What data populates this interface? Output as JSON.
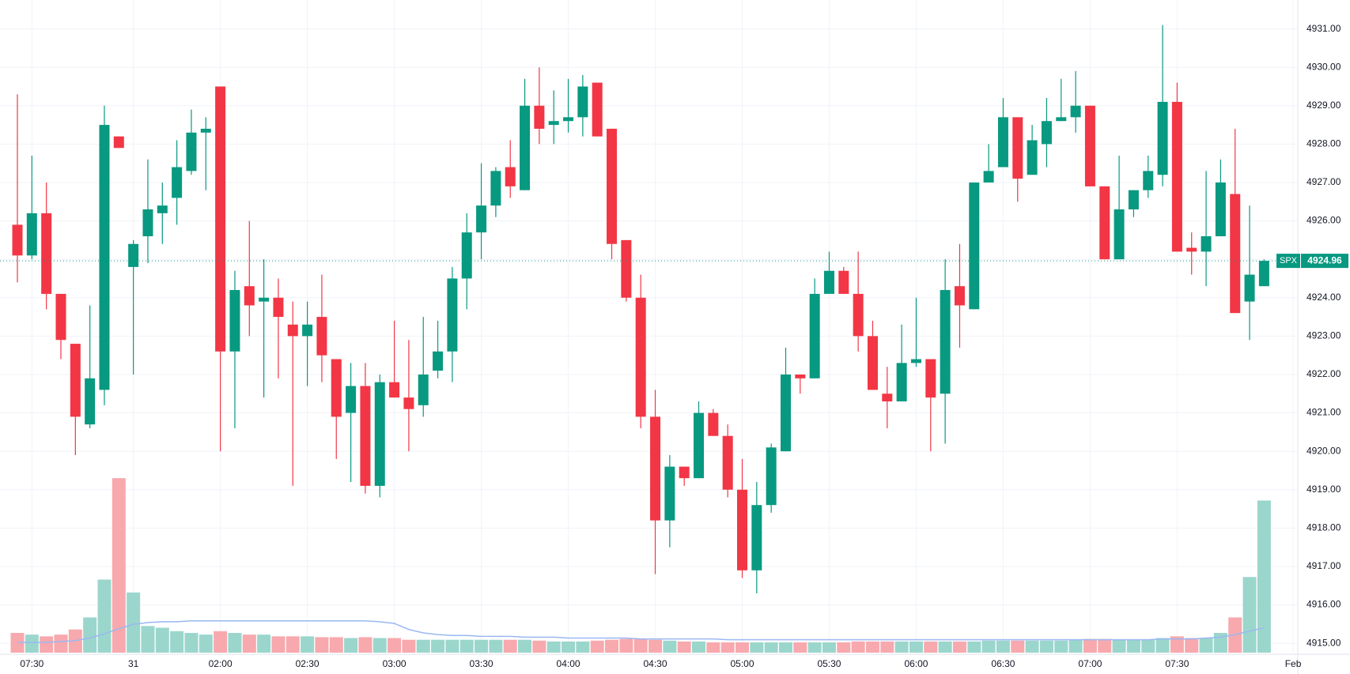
{
  "chart_data": {
    "type": "candlestick",
    "symbol": "SPX",
    "last_price": 4924.96,
    "up_color": "#089981",
    "down_color": "#f23645",
    "volume_up_color": "#9bd6cc",
    "volume_down_color": "#f7a9ae",
    "volume_ma_color": "#9ab8f2",
    "grid": true,
    "ylim": [
      4914.9,
      4931.3
    ],
    "yticks": [
      {
        "value": 4915,
        "label": "4915.00"
      },
      {
        "value": 4916,
        "label": "4916.00"
      },
      {
        "value": 4917,
        "label": "4917.00"
      },
      {
        "value": 4918,
        "label": "4918.00"
      },
      {
        "value": 4919,
        "label": "4919.00"
      },
      {
        "value": 4920,
        "label": "4920.00"
      },
      {
        "value": 4921,
        "label": "4921.00"
      },
      {
        "value": 4922,
        "label": "4922.00"
      },
      {
        "value": 4923,
        "label": "4923.00"
      },
      {
        "value": 4924,
        "label": "4924.00"
      },
      {
        "value": 4925,
        "label": "4925.00"
      },
      {
        "value": 4926,
        "label": "4926.00"
      },
      {
        "value": 4927,
        "label": "4927.00"
      },
      {
        "value": 4928,
        "label": "4928.00"
      },
      {
        "value": 4929,
        "label": "4929.00"
      },
      {
        "value": 4930,
        "label": "4930.00"
      },
      {
        "value": 4931,
        "label": "4931.00"
      }
    ],
    "xticks": [
      {
        "value": 1,
        "label": "07:30"
      },
      {
        "value": 8,
        "label": "31"
      },
      {
        "value": 14,
        "label": "02:00"
      },
      {
        "value": 20,
        "label": "02:30"
      },
      {
        "value": 26,
        "label": "03:00"
      },
      {
        "value": 32,
        "label": "03:30"
      },
      {
        "value": 38,
        "label": "04:00"
      },
      {
        "value": 44,
        "label": "04:30"
      },
      {
        "value": 50,
        "label": "05:00"
      },
      {
        "value": 56,
        "label": "05:30"
      },
      {
        "value": 62,
        "label": "06:00"
      },
      {
        "value": 68,
        "label": "06:30"
      },
      {
        "value": 74,
        "label": "07:00"
      },
      {
        "value": 80,
        "label": "07:30"
      },
      {
        "value": 88,
        "label": "Feb"
      }
    ],
    "open": [
      4925.9,
      4925.1,
      4926.2,
      4924.1,
      4922.8,
      4920.7,
      4921.6,
      4928.2,
      4924.8,
      4925.6,
      4926.2,
      4926.6,
      4927.3,
      4928.3,
      4929.5,
      4922.6,
      4924.3,
      4923.9,
      4924.0,
      4923.3,
      4923.0,
      4923.5,
      4922.4,
      4921.0,
      4921.7,
      4919.1,
      4921.8,
      4921.4,
      4921.2,
      4922.1,
      4922.6,
      4924.5,
      4925.7,
      4926.4,
      4927.4,
      4926.8,
      4929.0,
      4928.5,
      4928.6,
      4928.7,
      4929.6,
      4928.4,
      4925.5,
      4924.0,
      4920.9,
      4918.2,
      4919.6,
      4919.3,
      4921.0,
      4920.4,
      4919.0,
      4916.9,
      4918.6,
      4920.0,
      4922.0,
      4921.9,
      4924.1,
      4924.7,
      4924.1,
      4923.0,
      4921.5,
      4921.3,
      4922.3,
      4922.4,
      4921.5,
      4924.3,
      4923.7,
      4927.0,
      4927.4,
      4928.7,
      4927.2,
      4928.0,
      4928.6,
      4928.7,
      4929.0,
      4926.9,
      4925.0,
      4926.3,
      4926.8,
      4927.2,
      4929.1,
      4925.3,
      4925.2,
      4925.6,
      4926.7,
      4923.9,
      4924.3
    ],
    "high": [
      4929.3,
      4927.7,
      4927.0,
      4924.1,
      4922.8,
      4923.8,
      4929.0,
      4928.2,
      4925.5,
      4927.6,
      4927.0,
      4928.1,
      4928.9,
      4928.7,
      4929.5,
      4924.7,
      4926.0,
      4925.0,
      4924.5,
      4923.9,
      4923.9,
      4924.6,
      4922.4,
      4922.3,
      4922.3,
      4922.0,
      4923.4,
      4922.9,
      4923.5,
      4923.4,
      4924.8,
      4926.2,
      4927.5,
      4927.4,
      4928.1,
      4929.7,
      4930.0,
      4929.4,
      4929.7,
      4929.8,
      4929.6,
      4928.4,
      4925.5,
      4924.6,
      4921.6,
      4919.9,
      4919.6,
      4921.3,
      4921.1,
      4920.7,
      4919.8,
      4919.2,
      4920.2,
      4922.7,
      4922.0,
      4924.5,
      4925.2,
      4924.8,
      4925.2,
      4923.4,
      4922.2,
      4923.3,
      4924.0,
      4922.4,
      4925.0,
      4925.4,
      4927.0,
      4928.0,
      4929.2,
      4928.7,
      4928.5,
      4929.2,
      4929.7,
      4929.9,
      4929.0,
      4926.9,
      4927.7,
      4926.8,
      4927.7,
      4931.1,
      4929.6,
      4925.7,
      4927.3,
      4927.6,
      4928.4,
      4926.4,
      4925.0
    ],
    "low": [
      4924.4,
      4925.0,
      4923.7,
      4922.4,
      4919.9,
      4920.6,
      4921.2,
      4927.9,
      4922.0,
      4924.9,
      4925.4,
      4925.9,
      4927.2,
      4926.8,
      4920.0,
      4920.6,
      4923.0,
      4921.4,
      4921.9,
      4919.1,
      4921.7,
      4921.8,
      4919.8,
      4919.2,
      4918.9,
      4918.8,
      4921.4,
      4920.0,
      4920.9,
      4921.9,
      4921.8,
      4923.7,
      4925.0,
      4926.1,
      4926.6,
      4926.8,
      4928.0,
      4928.0,
      4928.3,
      4928.2,
      4928.2,
      4925.0,
      4923.9,
      4920.6,
      4916.8,
      4917.5,
      4919.1,
      4919.3,
      4920.4,
      4918.8,
      4916.7,
      4916.3,
      4918.4,
      4920.0,
      4921.5,
      4921.9,
      4924.1,
      4924.1,
      4922.6,
      4921.6,
      4920.6,
      4921.3,
      4922.2,
      4920.0,
      4920.2,
      4922.7,
      4923.7,
      4927.0,
      4927.4,
      4926.5,
      4927.2,
      4927.4,
      4928.6,
      4928.3,
      4926.9,
      4925.0,
      4925.0,
      4926.1,
      4926.6,
      4926.9,
      4925.2,
      4924.6,
      4924.3,
      4925.6,
      4923.6,
      4922.9,
      4924.3
    ],
    "close": [
      4925.1,
      4926.2,
      4924.1,
      4922.9,
      4920.9,
      4921.9,
      4928.5,
      4927.9,
      4925.4,
      4926.3,
      4926.4,
      4927.4,
      4928.3,
      4928.4,
      4922.6,
      4924.2,
      4923.8,
      4924.0,
      4923.5,
      4923.0,
      4923.3,
      4922.5,
      4920.9,
      4921.7,
      4919.1,
      4921.8,
      4921.4,
      4921.1,
      4922.0,
      4922.6,
      4924.5,
      4925.7,
      4926.4,
      4927.3,
      4926.9,
      4929.0,
      4928.4,
      4928.6,
      4928.7,
      4929.5,
      4928.2,
      4925.4,
      4924.0,
      4920.9,
      4918.2,
      4919.6,
      4919.3,
      4921.0,
      4920.4,
      4919.0,
      4916.9,
      4918.6,
      4920.1,
      4922.0,
      4921.9,
      4924.1,
      4924.7,
      4924.1,
      4923.0,
      4921.6,
      4921.3,
      4922.3,
      4922.4,
      4921.4,
      4924.2,
      4923.8,
      4927.0,
      4927.3,
      4928.7,
      4927.1,
      4928.1,
      4928.6,
      4928.7,
      4929.0,
      4926.9,
      4925.0,
      4926.3,
      4926.8,
      4927.3,
      4929.1,
      4925.2,
      4925.2,
      4925.6,
      4927.0,
      4923.6,
      4924.6,
      4924.96
    ],
    "volume": [
      23,
      21,
      19,
      21,
      27,
      41,
      85,
      203,
      70,
      31,
      29,
      25,
      23,
      21,
      25,
      23,
      21,
      21,
      19,
      19,
      19,
      18,
      18,
      17,
      18,
      17,
      17,
      15,
      15,
      15,
      15,
      15,
      15,
      15,
      15,
      15,
      14,
      13,
      13,
      13,
      14,
      15,
      16,
      16,
      15,
      14,
      13,
      13,
      12,
      12,
      12,
      12,
      12,
      12,
      12,
      12,
      12,
      12,
      13,
      13,
      13,
      13,
      13,
      13,
      13,
      13,
      13,
      14,
      14,
      14,
      14,
      14,
      14,
      15,
      16,
      16,
      15,
      15,
      15,
      17,
      19,
      17,
      17,
      23,
      41,
      88,
      177
    ],
    "volume_ma": [
      12,
      12,
      12,
      13,
      14,
      17,
      22,
      28,
      33,
      35,
      36,
      36,
      37,
      37,
      37,
      37,
      37,
      37,
      37,
      37,
      37,
      37,
      37,
      37,
      37,
      36,
      34,
      27,
      23,
      21,
      20,
      20,
      19,
      19,
      19,
      18,
      18,
      18,
      17,
      17,
      17,
      17,
      17,
      16,
      16,
      16,
      16,
      16,
      16,
      15,
      15,
      15,
      15,
      15,
      15,
      15,
      15,
      15,
      15,
      15,
      15,
      15,
      15,
      15,
      15,
      15,
      15,
      15,
      15,
      15,
      15,
      15,
      15,
      15,
      15,
      15,
      15,
      15,
      15,
      16,
      16,
      16,
      17,
      18,
      21,
      25,
      29
    ]
  }
}
